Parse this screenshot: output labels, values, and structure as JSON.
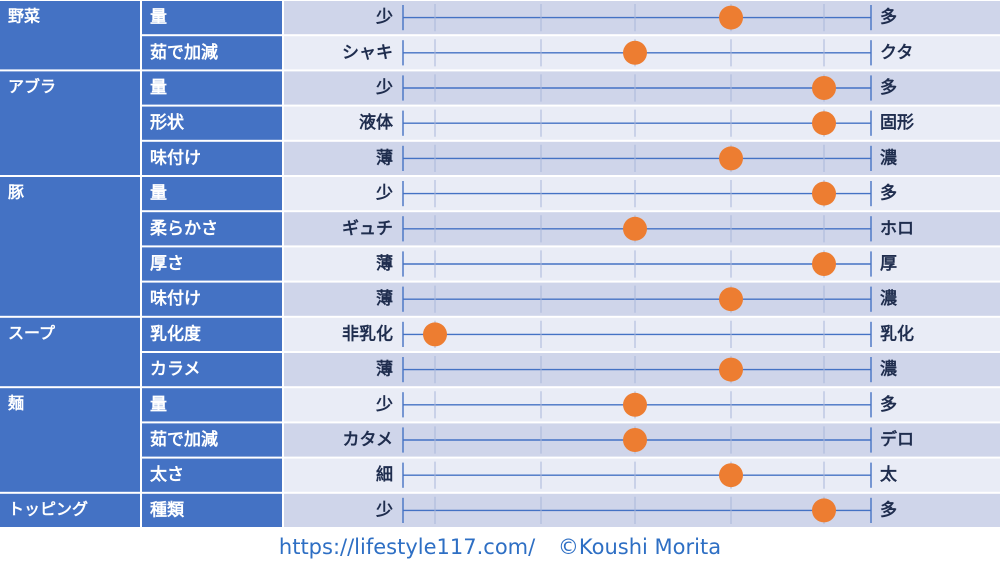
{
  "chart_data": {
    "type": "table",
    "scale_max": 5,
    "categories": [
      {
        "name": "野菜",
        "rows": [
          {
            "label": "量",
            "left": "少",
            "right": "多",
            "value": 4
          },
          {
            "label": "茹で加減",
            "left": "シャキ",
            "right": "クタ",
            "value": 3
          }
        ]
      },
      {
        "name": "アブラ",
        "rows": [
          {
            "label": "量",
            "left": "少",
            "right": "多",
            "value": 5
          },
          {
            "label": "形状",
            "left": "液体",
            "right": "固形",
            "value": 5
          },
          {
            "label": "味付け",
            "left": "薄",
            "right": "濃",
            "value": 4
          }
        ]
      },
      {
        "name": "豚",
        "rows": [
          {
            "label": "量",
            "left": "少",
            "right": "多",
            "value": 5
          },
          {
            "label": "柔らかさ",
            "left": "ギュチ",
            "right": "ホロ",
            "value": 3
          },
          {
            "label": "厚さ",
            "left": "薄",
            "right": "厚",
            "value": 5
          },
          {
            "label": "味付け",
            "left": "薄",
            "right": "濃",
            "value": 4
          }
        ]
      },
      {
        "name": "スープ",
        "rows": [
          {
            "label": "乳化度",
            "left": "非乳化",
            "right": "乳化",
            "value": 1
          },
          {
            "label": "カラメ",
            "left": "薄",
            "right": "濃",
            "value": 4
          }
        ]
      },
      {
        "name": "麺",
        "rows": [
          {
            "label": "量",
            "left": "少",
            "right": "多",
            "value": 3
          },
          {
            "label": "茹で加減",
            "left": "カタメ",
            "right": "デロ",
            "value": 3
          },
          {
            "label": "太さ",
            "left": "細",
            "right": "太",
            "value": 4
          }
        ]
      },
      {
        "name": "トッピング",
        "rows": [
          {
            "label": "種類",
            "left": "少",
            "right": "多",
            "value": 5
          }
        ]
      }
    ]
  },
  "footer": {
    "url": "https://lifestyle117.com/",
    "copyright": "©Koushi Morita"
  },
  "colors": {
    "category_bg": "#4472c4",
    "label_bg": "#4472c4",
    "row_bg_light": "#e9ecf6",
    "row_bg_dark": "#cfd5ea",
    "line": "#4472c4",
    "marker": "#ed7d31",
    "text_light": "#ffffff",
    "text_dark": "#1f2d4e"
  }
}
